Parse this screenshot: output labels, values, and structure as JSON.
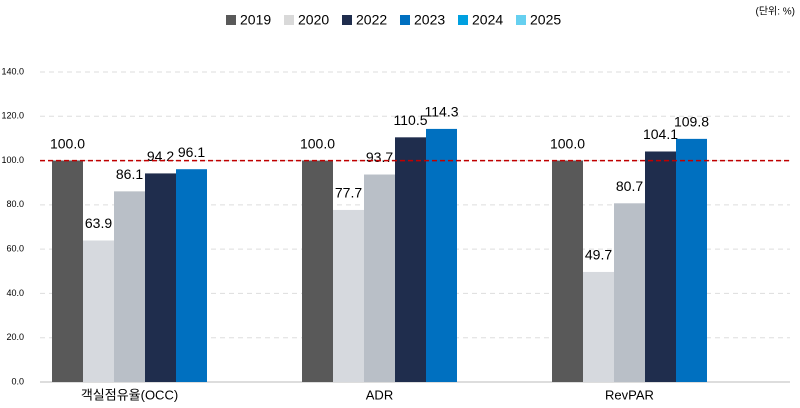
{
  "chart_data": {
    "type": "bar",
    "unit_label": "(단위: %)",
    "categories": [
      "객실점유율(OCC)",
      "ADR",
      "RevPAR"
    ],
    "series": [
      {
        "name": "2019",
        "legend_color": "#595959",
        "color": "#595959",
        "values": [
          100,
          100,
          100
        ],
        "value_labels": [
          "100.0",
          "100.0",
          "100.0"
        ]
      },
      {
        "name": "2020",
        "legend_color": "#d9d9d9",
        "color": "#d6d9de",
        "values": [
          63.9,
          77.7,
          49.7
        ],
        "value_labels": [
          "63.9",
          "77.7",
          "49.7"
        ]
      },
      {
        "name": "2022",
        "legend_color": "#1f2d4d",
        "color": "#b9bfc7",
        "values": [
          86.1,
          93.7,
          80.7
        ],
        "value_labels": [
          "86.1",
          "93.7",
          "80.7"
        ]
      },
      {
        "name": "2023",
        "legend_color": "#0070c0",
        "color": "#1f2d4d",
        "values": [
          94.2,
          110.5,
          104.1
        ],
        "value_labels": [
          "94.2",
          "110.5",
          "104.1"
        ]
      },
      {
        "name": "2024",
        "legend_color": "#00a0e0",
        "color": "#0070c0",
        "values": [
          96.1,
          114.3,
          109.8
        ],
        "value_labels": [
          "96.1",
          "114.3",
          "109.8"
        ]
      },
      {
        "name": "2025",
        "legend_color": "#66d0f0",
        "color": "#66d0f0",
        "values": [
          null,
          null,
          null
        ],
        "value_labels": [
          null,
          null,
          null
        ]
      }
    ],
    "ylim": [
      0,
      140
    ],
    "yticks": [
      {
        "value": 0,
        "label": "0.0"
      },
      {
        "value": 20,
        "label": "20.0"
      },
      {
        "value": 40,
        "label": "40.0"
      },
      {
        "value": 60,
        "label": "60.0"
      },
      {
        "value": 80,
        "label": "80.0"
      },
      {
        "value": 100,
        "label": "100.0"
      },
      {
        "value": 120,
        "label": "120.0"
      },
      {
        "value": 140,
        "label": "140.0"
      }
    ],
    "grid": true,
    "reference_line": {
      "value": 100,
      "color": "#c00000"
    }
  }
}
